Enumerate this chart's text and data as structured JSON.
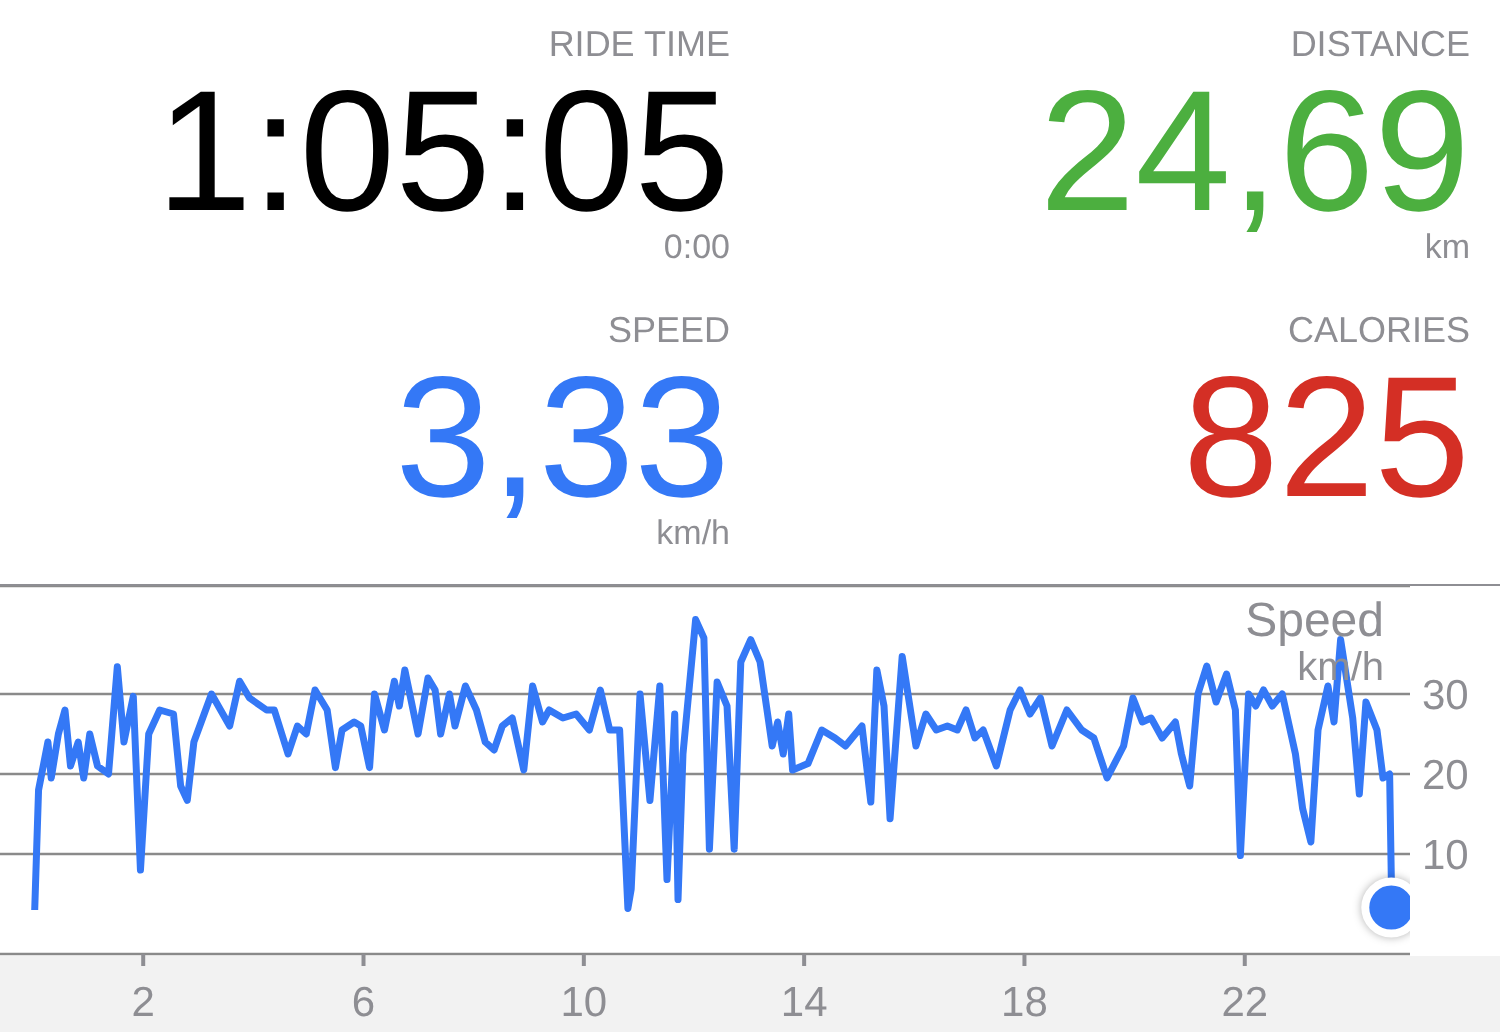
{
  "chart_data": [
    {
      "type": "other",
      "categories": [
        "RIDE TIME",
        "DISTANCE",
        "SPEED",
        "CALORIES"
      ],
      "value_labels": [
        "1:05:05",
        "24,69",
        "3,33",
        "825"
      ],
      "colors": [
        "#000000",
        "#4caf3f",
        "#3478f6",
        "#d42f25"
      ],
      "annotations": [
        "0:00",
        "km",
        "km/h"
      ]
    },
    {
      "type": "line",
      "title": "Speed",
      "ylabel": "km/h",
      "xlim": [
        -0.6,
        25
      ],
      "xticks": [
        2,
        6,
        10,
        14,
        18,
        22
      ],
      "ylim": [
        -2.5,
        43.5
      ],
      "yticks": [
        10,
        20,
        30
      ],
      "grid": "y",
      "series": [
        {
          "color": "#3478f6",
          "marker": "none",
          "x": [
            0.03,
            0.1,
            0.27,
            0.33,
            0.46,
            0.58,
            0.68,
            0.82,
            0.92,
            1.03,
            1.17,
            1.37,
            1.53,
            1.65,
            1.82,
            1.95,
            2.1,
            2.3,
            2.55,
            2.68,
            2.8,
            2.92,
            3.24,
            3.57,
            3.75,
            3.93,
            4.24,
            4.38,
            4.63,
            4.8,
            4.96,
            5.12,
            5.34,
            5.49,
            5.61,
            5.83,
            5.95,
            6.11,
            6.2,
            6.38,
            6.56,
            6.65,
            6.75,
            6.99,
            7.17,
            7.3,
            7.4,
            7.56,
            7.66,
            7.85,
            8.05,
            8.21,
            8.37,
            8.52,
            8.7,
            8.91,
            9.07,
            9.25,
            9.37,
            9.62,
            9.86,
            10.1,
            10.3,
            10.47,
            10.65,
            10.8,
            10.86,
            11.02,
            11.2,
            11.38,
            11.51,
            11.65,
            11.71,
            11.8,
            12.03,
            12.18,
            12.28,
            12.42,
            12.6,
            12.73,
            12.85,
            13.03,
            13.2,
            13.42,
            13.52,
            13.62,
            13.72,
            13.79,
            14.07,
            14.32,
            14.56,
            14.75,
            15.05,
            15.21,
            15.32,
            15.45,
            15.56,
            15.78,
            16.03,
            16.21,
            16.4,
            16.6,
            16.78,
            16.94,
            17.1,
            17.25,
            17.49,
            17.74,
            17.92,
            18.1,
            18.29,
            18.5,
            18.77,
            19.04,
            19.26,
            19.5,
            19.8,
            19.97,
            20.14,
            20.3,
            20.5,
            20.74,
            20.85,
            21.0,
            21.15,
            21.31,
            21.48,
            21.67,
            21.83,
            21.92,
            22.07,
            22.2,
            22.34,
            22.5,
            22.68,
            22.92,
            23.05,
            23.2,
            23.33,
            23.51,
            23.62,
            23.74,
            23.96,
            24.08,
            24.2,
            24.4,
            24.51,
            24.63,
            24.66,
            24.66
          ],
          "values": [
            3,
            18,
            24,
            19.5,
            25,
            28,
            21,
            24,
            19.5,
            25,
            21,
            20,
            33.4,
            24,
            29.7,
            8,
            25,
            28,
            27.5,
            18.5,
            16.7,
            24,
            30,
            26,
            31.6,
            29.5,
            28,
            28,
            22.5,
            26,
            25,
            30.5,
            28,
            20.8,
            25.5,
            26.5,
            26,
            20.8,
            30,
            25.5,
            31.6,
            28.5,
            33,
            25,
            32,
            30.5,
            25,
            30,
            26,
            31,
            28,
            24,
            23,
            26,
            27,
            20.5,
            31,
            26.5,
            28,
            27,
            27.5,
            25.5,
            30.5,
            25.5,
            25.5,
            3.2,
            5.6,
            30,
            16.7,
            31,
            6.8,
            27.5,
            4.3,
            22.5,
            39.3,
            37,
            10.6,
            31.5,
            28.5,
            10.6,
            34,
            36.8,
            34,
            23.5,
            26.5,
            22.5,
            27.5,
            20.5,
            21.3,
            25.5,
            24.5,
            23.5,
            26,
            16.5,
            33,
            28.5,
            14.4,
            34.7,
            23.5,
            27.5,
            25.5,
            26,
            25.5,
            28,
            24.5,
            25.5,
            21,
            28,
            30.5,
            27.5,
            29.5,
            23.5,
            28,
            25.5,
            24.5,
            19.5,
            23.5,
            29.5,
            26.5,
            27,
            24.5,
            26.5,
            22.5,
            18.5,
            30,
            33.5,
            29,
            32.5,
            28,
            9.8,
            30,
            28.5,
            30.5,
            28.5,
            30,
            22.5,
            15.7,
            11.5,
            25.5,
            31,
            26.5,
            36.8,
            27,
            17.5,
            29,
            25.5,
            19.5,
            20,
            7.3,
            3.3
          ]
        },
        {
          "type": "scatter",
          "marker": "circle",
          "color": "#3478f6",
          "x": [
            24.66
          ],
          "values": [
            3.3
          ]
        }
      ]
    }
  ]
}
